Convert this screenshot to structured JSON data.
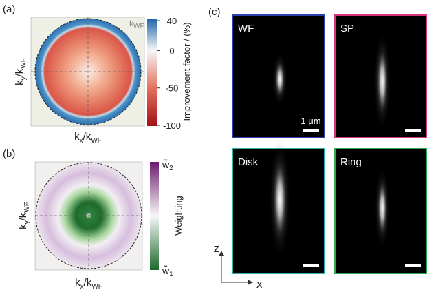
{
  "panel_a": {
    "label": "(a)",
    "circle_label": [
      "k",
      "WF"
    ],
    "xlabel": [
      "k",
      "x",
      "/k",
      "WF"
    ],
    "ylabel": [
      "k",
      "y",
      "/k",
      "WF"
    ],
    "colorbar": {
      "title": "Improvement factor / (%)",
      "lim": [
        -100,
        40
      ],
      "ticks": [
        40,
        0,
        -50,
        -100
      ]
    }
  },
  "panel_b": {
    "label": "(b)",
    "xlabel": [
      "k",
      "x",
      "/k",
      "WF"
    ],
    "ylabel": [
      "k",
      "y",
      "/k",
      "WF"
    ],
    "colorbar": {
      "title": "Weighting",
      "top": [
        "w̃",
        "2"
      ],
      "bottom": [
        "w̃",
        "1"
      ]
    }
  },
  "panel_c": {
    "label": "(c)",
    "images": [
      {
        "label": "WF",
        "scale": "1 μm"
      },
      {
        "label": "SP"
      },
      {
        "label": "Disk"
      },
      {
        "label": "Ring"
      }
    ],
    "axes": {
      "vertical": "z",
      "horizontal": "x"
    }
  }
}
